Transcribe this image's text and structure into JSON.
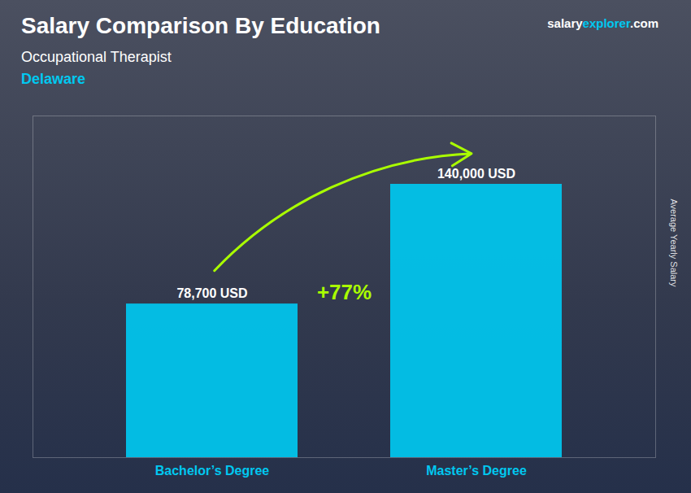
{
  "chart_data": {
    "type": "bar",
    "title": "Salary Comparison By Education",
    "subtitle": "Occupational Therapist",
    "location": "Delaware",
    "ylabel": "Average Yearly Salary",
    "categories": [
      "Bachelor’s Degree",
      "Master’s Degree"
    ],
    "values": [
      78700,
      140000
    ],
    "value_labels": [
      "78,700 USD",
      "140,000 USD"
    ],
    "data_labels": true,
    "color": "#00C8F0",
    "ylim": [
      0,
      175000
    ],
    "yticks": [],
    "tick_labels": "x",
    "annotations": [
      {
        "text": "+77%",
        "color": "#AAFF00"
      }
    ],
    "watermark": [
      {
        "text": "salary",
        "color": "#FFFFFF"
      },
      {
        "text": "explorer",
        "color": "#00C8F0"
      },
      {
        "text": ".com",
        "color": "#FFFFFF"
      }
    ]
  }
}
